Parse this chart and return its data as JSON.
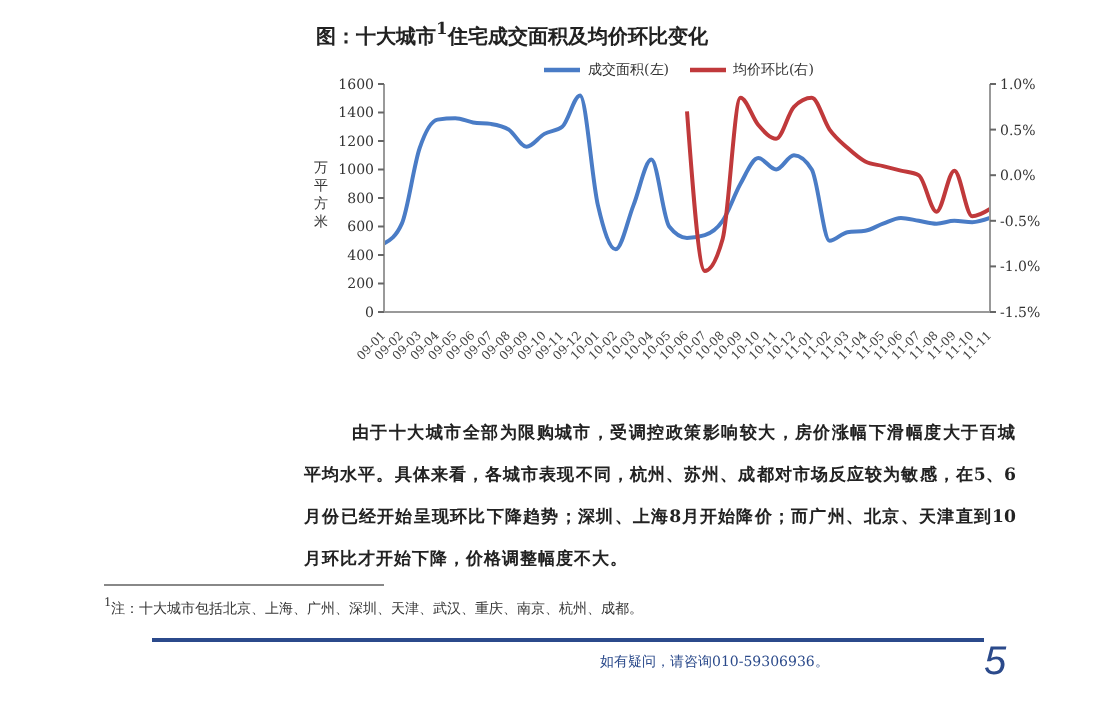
{
  "chart_data": {
    "type": "line",
    "title": "图：十大城市$^{1}$住宅成交面积及均价环比变化",
    "ylabel": "万平方米",
    "categories": [
      "09-01",
      "09-02",
      "09-03",
      "09-04",
      "09-05",
      "09-06",
      "09-07",
      "09-08",
      "09-09",
      "09-10",
      "09-11",
      "09-12",
      "10-01",
      "10-02",
      "10-03",
      "10-04",
      "10-05",
      "10-06",
      "10-07",
      "10-08",
      "10-09",
      "10-10",
      "10-11",
      "10-12",
      "11-01",
      "11-02",
      "11-03",
      "11-04",
      "11-05",
      "11-06",
      "11-07",
      "11-08",
      "11-09",
      "11-10",
      "11-11"
    ],
    "series": [
      {
        "name": "成交面积(左)",
        "color": "#4a7cc6",
        "values": [
          480,
          620,
          1150,
          1350,
          1360,
          1330,
          1320,
          1280,
          1160,
          1250,
          1300,
          1520,
          750,
          440,
          750,
          1070,
          600,
          520,
          540,
          640,
          900,
          1080,
          1000,
          1100,
          1000,
          500,
          560,
          570,
          620,
          660,
          640,
          620,
          640,
          630,
          660
        ]
      },
      {
        "name": "均价环比(右)",
        "color": "#c0393b",
        "axis": "y2",
        "values": [
          null,
          null,
          null,
          null,
          null,
          null,
          null,
          null,
          null,
          null,
          null,
          null,
          null,
          null,
          null,
          null,
          null,
          0.7,
          -1.05,
          -0.7,
          0.85,
          0.55,
          0.4,
          0.75,
          0.85,
          0.5,
          0.3,
          0.15,
          0.1,
          0.05,
          0,
          -0.4,
          0.05,
          -0.45,
          -0.37
        ]
      }
    ],
    "ylim": [
      0,
      1600
    ],
    "yticks": [
      0,
      200,
      400,
      600,
      800,
      1000,
      1200,
      1400,
      1600
    ],
    "y2lim": [
      -1.5,
      1.0
    ],
    "y2ticks": [
      {
        "value": -1.5,
        "label": "-1.5%"
      },
      {
        "value": -1.0,
        "label": "-1.0%"
      },
      {
        "value": -0.5,
        "label": "-0.5%"
      },
      {
        "value": 0,
        "label": "0.0%"
      },
      {
        "value": 0.5,
        "label": "0.5%"
      },
      {
        "value": 1.0,
        "label": "1.0%"
      }
    ],
    "legend": "top",
    "marker": "none",
    "line_style": "solid",
    "annotations": [
      "由于十大城市全部为限购城市，受调控政策影响较大，房价涨幅下滑幅度大于百城平均水平。具体来看，各城市表现不同，杭州、苏州、成都对市场反应较为敏感，在5、6月份已经开始呈现环比下降趋势；深圳、上海8月开始降价；而广州、北京、天津直到10月环比才开始下降，价格调整幅度不大。",
      "$^{1}$注：十大城市包括北京、上海、广州、深圳、天津、武汉、重庆、南京、杭州、成都。",
      "如有疑问，请咨询010-59306936。",
      "5"
    ]
  }
}
